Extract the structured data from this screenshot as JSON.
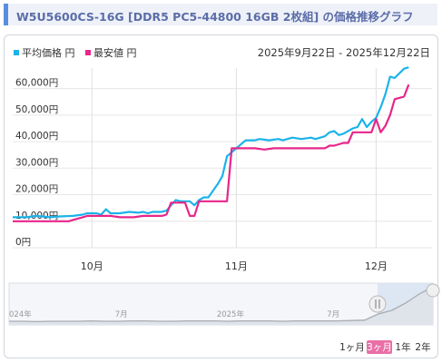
{
  "title": "W5U5600CS-16G [DDR5 PC5-44800 16GB 2枚組] の価格推移グラフ",
  "colors": {
    "avg": "#1bb3ea",
    "min": "#e7268a",
    "accent": "#5a8de0",
    "title": "#5b6da8",
    "active_btn": "#e96fa6"
  },
  "chart_data": {
    "type": "line",
    "date_range": "2025年9月22日 - 2025年12月22日",
    "y_ticks": [
      "0円",
      "10,000円",
      "20,000円",
      "30,000円",
      "40,000円",
      "50,000円",
      "60,000円"
    ],
    "ylim": [
      0,
      65000
    ],
    "x_ticks": [
      {
        "label": "10月",
        "day": 9
      },
      {
        "label": "11月",
        "day": 40
      },
      {
        "label": "12月",
        "day": 70
      }
    ],
    "xlim": [
      -8,
      82
    ],
    "series": [
      {
        "name": "平均価格 円",
        "x": [
          -8,
          -5,
          -3,
          0,
          2,
          5,
          7,
          8,
          9,
          10,
          11,
          12,
          13,
          15,
          17,
          19,
          20,
          21,
          22,
          24,
          25,
          26,
          27,
          28,
          30,
          31,
          32,
          33,
          34,
          36,
          37,
          38,
          42,
          44,
          45,
          47,
          49,
          50,
          52,
          54,
          56,
          57,
          58,
          59,
          60,
          61,
          62,
          63,
          64,
          65,
          66,
          67,
          68,
          69,
          70,
          71,
          72,
          73,
          74,
          76,
          77
        ],
        "y": [
          11500,
          11500,
          12000,
          11500,
          11800,
          12000,
          12500,
          13000,
          13000,
          13000,
          12500,
          14500,
          13000,
          13000,
          13500,
          13200,
          13500,
          13000,
          13500,
          13500,
          14000,
          16000,
          18000,
          17500,
          17500,
          16000,
          18000,
          19000,
          19000,
          24000,
          27000,
          34500,
          40500,
          40500,
          41000,
          40500,
          41000,
          40500,
          41500,
          41000,
          41500,
          41000,
          41500,
          42000,
          43500,
          44000,
          42500,
          43000,
          44000,
          45000,
          45500,
          48500,
          45500,
          47500,
          49000,
          53000,
          58000,
          64500,
          64000,
          67500,
          68000
        ]
      },
      {
        "name": "最安値 円",
        "x": [
          -8,
          4,
          5,
          7,
          8,
          9,
          10,
          11,
          12,
          13,
          15,
          18,
          20,
          22,
          24,
          25,
          26,
          27,
          29,
          30,
          31,
          32,
          33,
          38,
          39,
          44,
          46,
          48,
          52,
          56,
          59,
          60,
          61,
          62,
          63,
          64,
          65,
          66,
          67,
          68,
          69,
          70,
          71,
          72,
          73,
          74,
          76,
          77
        ],
        "y": [
          10000,
          10000,
          10500,
          11500,
          12000,
          12000,
          12000,
          12000,
          12000,
          12000,
          11500,
          11500,
          12000,
          12000,
          12000,
          12500,
          17000,
          17000,
          17000,
          12000,
          12000,
          17500,
          17500,
          17500,
          37500,
          37500,
          37000,
          37500,
          37500,
          37500,
          37500,
          38500,
          38500,
          39000,
          39500,
          39500,
          43500,
          43500,
          43500,
          43500,
          43500,
          48500,
          43500,
          46000,
          50000,
          56000,
          57000,
          61500
        ]
      }
    ],
    "navigator": {
      "labels": [
        {
          "text": "024年",
          "pos": 0.0
        },
        {
          "text": "7月",
          "pos": 0.25
        },
        {
          "text": "2025年",
          "pos": 0.49
        },
        {
          "text": "7月",
          "pos": 0.75
        }
      ],
      "trend": [
        0.05,
        0.05,
        0.04,
        0.05,
        0.05,
        0.05,
        0.06,
        0.05,
        0.05,
        0.06,
        0.06,
        0.05,
        0.05,
        0.06,
        0.06,
        0.06,
        0.05,
        0.06,
        0.06,
        0.06,
        0.05,
        0.06,
        0.06,
        0.06,
        0.06,
        0.07,
        0.08,
        0.25,
        0.35,
        0.55,
        0.8,
        1.0
      ]
    },
    "range_buttons": [
      {
        "label": "1ヶ月",
        "active": false
      },
      {
        "label": "3ヶ月",
        "active": true
      },
      {
        "label": "1年",
        "active": false
      },
      {
        "label": "2年",
        "active": false
      }
    ]
  }
}
